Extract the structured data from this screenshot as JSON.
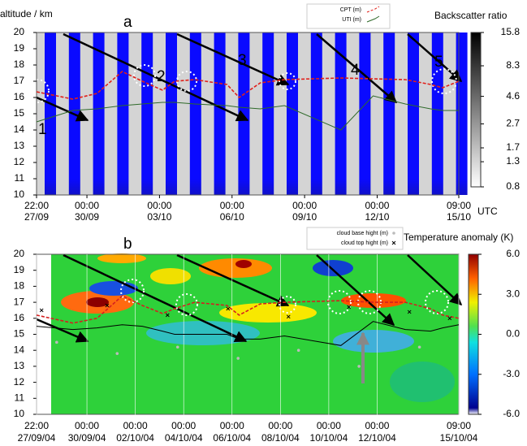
{
  "chart_data": [
    {
      "type": "line",
      "panel_label": "a",
      "y_label": "altitude / km",
      "colorbar_title": "Backscatter ratio",
      "x_unit": "UTC",
      "xlim": [
        0,
        419
      ],
      "ylim": [
        10,
        20
      ],
      "yticks": [
        10,
        11,
        12,
        13,
        14,
        15,
        16,
        17,
        18,
        19,
        20
      ],
      "xticks": [
        {
          "value": 0,
          "label": "22:00 27/09"
        },
        {
          "value": 50,
          "label": "00:00 30/09"
        },
        {
          "value": 122,
          "label": "00:00 03/10"
        },
        {
          "value": 194,
          "label": "00:00 06/10"
        },
        {
          "value": 266,
          "label": "00:00 09/10"
        },
        {
          "value": 338,
          "label": "00:00 12/10"
        },
        {
          "value": 419,
          "label": "09:00 15/10"
        }
      ],
      "colorbar": {
        "log": true,
        "clim": [
          0.8,
          15.8
        ],
        "ticks": [
          15.8,
          8.3,
          4.6,
          2.7,
          1.7,
          1.3,
          0.8
        ]
      },
      "annotations": [
        "1",
        "2",
        "3",
        "4",
        "5"
      ],
      "x": [
        0,
        36,
        60,
        85,
        105,
        125,
        137,
        157,
        189,
        201,
        222,
        246,
        302,
        334,
        366,
        391,
        403,
        419
      ],
      "series": [
        {
          "name": "CPT (m)",
          "color": "#e0201a",
          "dash": true,
          "values": [
            16.35,
            15.9,
            16.25,
            17.6,
            17.0,
            16.45,
            17.0,
            17.1,
            16.8,
            16.0,
            16.9,
            17.1,
            17.2,
            17.15,
            17.1,
            16.8,
            16.6,
            17.0
          ]
        },
        {
          "name": "UTI (m)",
          "color": "#2f6a2a",
          "dash": false,
          "values": [
            14.5,
            15.2,
            15.3,
            15.5,
            15.6,
            15.7,
            15.7,
            15.6,
            15.5,
            15.4,
            15.3,
            15.5,
            14.0,
            16.1,
            15.6,
            15.3,
            15.2,
            15.2
          ]
        }
      ]
    },
    {
      "type": "line",
      "panel_label": "b",
      "colorbar_title": "Temperature anomaly (K)",
      "xlim": [
        0,
        419
      ],
      "ylim": [
        10,
        20
      ],
      "yticks": [
        10,
        11,
        12,
        13,
        14,
        15,
        16,
        17,
        18,
        19,
        20
      ],
      "xticks": [
        {
          "value": 0,
          "label": "22:00 27/09/04"
        },
        {
          "value": 50,
          "label": "00:00 30/09/04"
        },
        {
          "value": 98,
          "label": "00:00 02/10/04"
        },
        {
          "value": 146,
          "label": "00:00 04/10/04"
        },
        {
          "value": 194,
          "label": "00:00 06/10/04"
        },
        {
          "value": 242,
          "label": "00:00 08/10/04"
        },
        {
          "value": 290,
          "label": "00:00 10/10/04"
        },
        {
          "value": 338,
          "label": "00:00 12/10/04"
        },
        {
          "value": 419,
          "label": "09:00 15/10/04"
        }
      ],
      "colorbar": {
        "log": false,
        "clim": [
          -6,
          6
        ],
        "ticks": [
          {
            "value": 6,
            "label": "6.0"
          },
          {
            "value": 3,
            "label": "3.0"
          },
          {
            "value": 0,
            "label": "0.0"
          },
          {
            "value": -3,
            "label": "-3.0"
          },
          {
            "value": -6,
            "label": "-6.0"
          }
        ]
      },
      "x": [
        0,
        36,
        60,
        85,
        105,
        125,
        137,
        157,
        189,
        201,
        222,
        246,
        302,
        334,
        366,
        391,
        403,
        419
      ],
      "series": [
        {
          "color": "#d42020",
          "dash": true,
          "values": [
            16.2,
            15.7,
            16.0,
            17.4,
            16.8,
            16.3,
            16.6,
            17.0,
            16.8,
            16.2,
            16.9,
            17.0,
            17.1,
            17.0,
            17.0,
            16.6,
            16.2,
            16.0
          ]
        },
        {
          "color": "#000000",
          "dash": false,
          "values": [
            15.5,
            15.3,
            15.4,
            15.6,
            15.5,
            15.2,
            15.0,
            15.0,
            15.0,
            14.7,
            14.7,
            14.9,
            14.3,
            15.8,
            15.3,
            15.2,
            15.4,
            15.6
          ]
        }
      ],
      "points": [
        {
          "name": "cloud base hight (m)",
          "color": "#bbbbbb",
          "marker": "dot",
          "x": [
            20,
            80,
            140,
            200,
            260,
            320,
            380
          ],
          "values": [
            14.5,
            13.8,
            14.2,
            13.5,
            14.0,
            13.0,
            14.2
          ]
        },
        {
          "name": "cloud top hight (m)",
          "color": "#000000",
          "marker": "cross",
          "x": [
            5,
            70,
            130,
            190,
            250,
            310,
            370,
            410
          ],
          "values": [
            16.5,
            16.8,
            16.2,
            16.6,
            16.1,
            16.7,
            16.4,
            16.0
          ]
        }
      ]
    }
  ]
}
